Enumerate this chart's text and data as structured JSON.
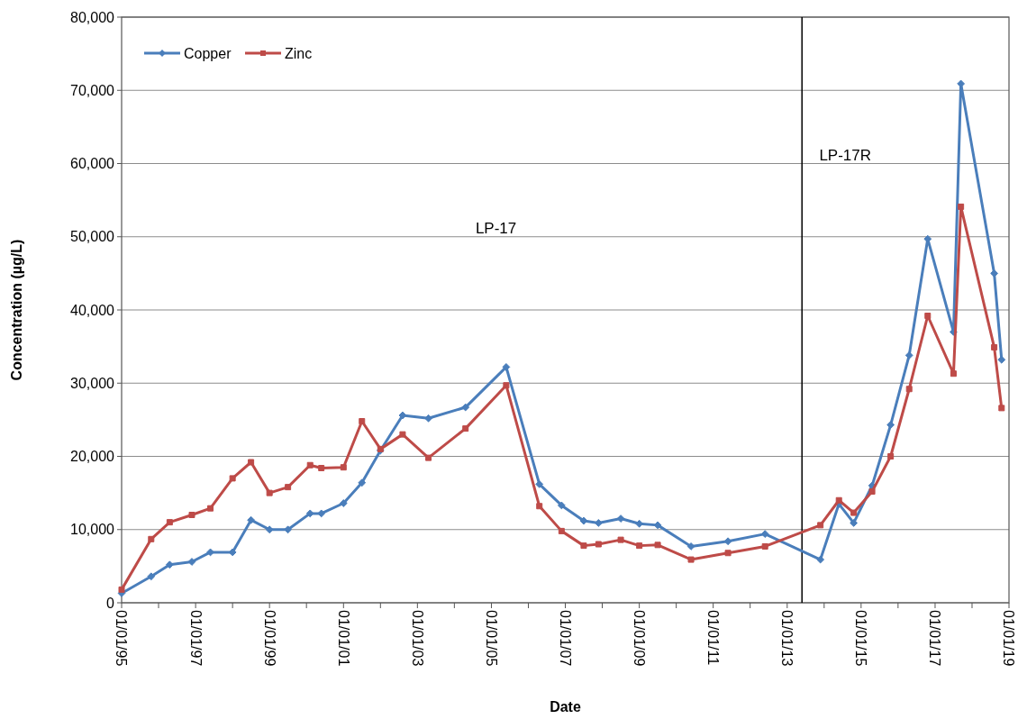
{
  "chart_data": {
    "type": "line",
    "xlabel": "Date",
    "ylabel": "Concentration (µg/L)",
    "x": [
      "1995-01-01",
      "1995-10-20",
      "1996-04-20",
      "1996-11-25",
      "1997-05-27",
      "1998-01-01",
      "1998-07-02",
      "1999-01-01",
      "1999-07-02",
      "2000-02-06",
      "2000-05-27",
      "2001-01-01",
      "2001-07-02",
      "2002-01-01",
      "2002-08-08",
      "2003-04-20",
      "2004-04-20",
      "2005-05-27",
      "2006-04-20",
      "2006-11-25",
      "2007-07-02",
      "2007-11-25",
      "2008-07-02",
      "2009-01-01",
      "2009-07-02",
      "2010-05-27",
      "2011-05-27",
      "2012-05-27",
      "2013-11-25",
      "2014-05-27",
      "2014-10-20",
      "2015-04-20",
      "2015-10-20",
      "2016-04-20",
      "2016-10-20",
      "2017-07-02",
      "2017-09-13",
      "2018-08-08",
      "2018-10-20"
    ],
    "series": [
      {
        "name": "Copper",
        "color": "#4a7ebb",
        "marker": "diamond",
        "values": [
          1300,
          3600,
          5200,
          5600,
          6900,
          6900,
          11300,
          10000,
          10000,
          12200,
          12200,
          13600,
          16400,
          20800,
          25600,
          25200,
          26700,
          32200,
          16200,
          13300,
          11200,
          10900,
          11500,
          10800,
          10600,
          7700,
          8400,
          9400,
          5900,
          13500,
          10900,
          16000,
          24300,
          33800,
          49700,
          37000,
          70900,
          45000,
          33200
        ]
      },
      {
        "name": "Zinc",
        "color": "#be4b48",
        "marker": "square",
        "values": [
          1800,
          8700,
          11000,
          12000,
          12900,
          17000,
          19200,
          15000,
          15800,
          18800,
          18400,
          18500,
          24800,
          21000,
          23000,
          19800,
          23800,
          29700,
          13200,
          9800,
          7800,
          8000,
          8600,
          7800,
          7900,
          5900,
          6800,
          7700,
          10600,
          14000,
          12300,
          15200,
          20000,
          29200,
          39200,
          31300,
          54100,
          34900,
          26600
        ]
      }
    ],
    "xlim": [
      "1995-01-01",
      "2019-01-01"
    ],
    "xticks": [
      {
        "value": "1995-01-01",
        "label": "01/01/95"
      },
      {
        "value": "1996-01-01",
        "label": null
      },
      {
        "value": "1997-01-01",
        "label": "01/01/97"
      },
      {
        "value": "1998-01-01",
        "label": null
      },
      {
        "value": "1999-01-01",
        "label": "01/01/99"
      },
      {
        "value": "2000-01-01",
        "label": null
      },
      {
        "value": "2001-01-01",
        "label": "01/01/01"
      },
      {
        "value": "2002-01-01",
        "label": null
      },
      {
        "value": "2003-01-01",
        "label": "01/01/03"
      },
      {
        "value": "2004-01-01",
        "label": null
      },
      {
        "value": "2005-01-01",
        "label": "01/01/05"
      },
      {
        "value": "2006-01-01",
        "label": null
      },
      {
        "value": "2007-01-01",
        "label": "01/01/07"
      },
      {
        "value": "2008-01-01",
        "label": null
      },
      {
        "value": "2009-01-01",
        "label": "01/01/09"
      },
      {
        "value": "2010-01-01",
        "label": null
      },
      {
        "value": "2011-01-01",
        "label": "01/01/11"
      },
      {
        "value": "2012-01-01",
        "label": null
      },
      {
        "value": "2013-01-01",
        "label": "01/01/13"
      },
      {
        "value": "2014-01-01",
        "label": null
      },
      {
        "value": "2015-01-01",
        "label": "01/01/15"
      },
      {
        "value": "2016-01-01",
        "label": null
      },
      {
        "value": "2017-01-01",
        "label": "01/01/17"
      },
      {
        "value": "2018-01-01",
        "label": null
      },
      {
        "value": "2019-01-01",
        "label": "01/01/19"
      }
    ],
    "ylim": [
      0,
      80000
    ],
    "yticks": [
      {
        "value": 0,
        "label": "0"
      },
      {
        "value": 10000,
        "label": "10,000"
      },
      {
        "value": 20000,
        "label": "20,000"
      },
      {
        "value": 30000,
        "label": "30,000"
      },
      {
        "value": 40000,
        "label": "40,000"
      },
      {
        "value": 50000,
        "label": "50,000"
      },
      {
        "value": 60000,
        "label": "60,000"
      },
      {
        "value": 70000,
        "label": "70,000"
      },
      {
        "value": 80000,
        "label": "80,000"
      }
    ],
    "grid": "y",
    "legend": "top left",
    "line_style": "solid",
    "ref_lines": [
      {
        "axis": "x",
        "value": "2013-05-27",
        "color": "#000000"
      }
    ],
    "annotations": [
      "LP-17",
      "LP-17R"
    ]
  }
}
